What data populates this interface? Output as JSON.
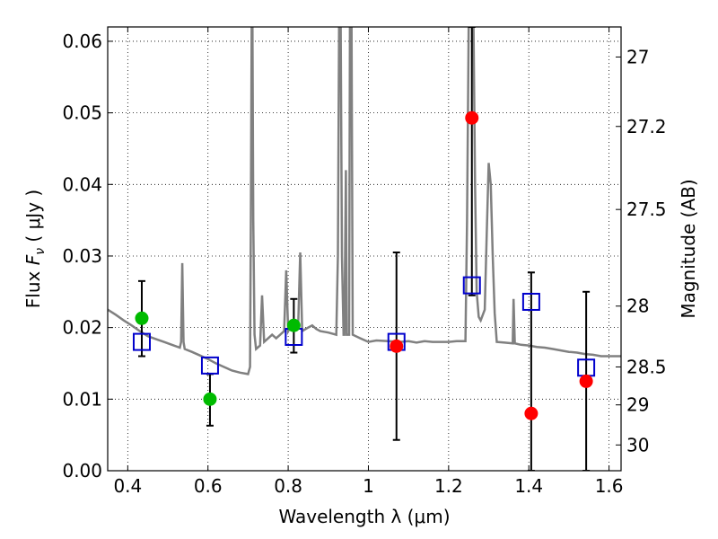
{
  "chart_data": {
    "type": "scatter",
    "xlabel": "Wavelength  λ (μm)",
    "ylabel_prefix": "Flux",
    "ylabel_symbol": "F",
    "ylabel_subscript": "ν",
    "ylabel_unit": "( μJy )",
    "y2label": "Magnitude (AB)",
    "xlim": [
      0.35,
      1.63
    ],
    "ylim": [
      0.0,
      0.062
    ],
    "grid": true,
    "x_ticks": [
      0.4,
      0.6,
      0.8,
      1.0,
      1.2,
      1.4,
      1.6
    ],
    "x_tick_labels": [
      "0.4",
      "0.6",
      "0.8",
      "1",
      "1.2",
      "1.4",
      "1.6"
    ],
    "y_ticks": [
      0.0,
      0.01,
      0.02,
      0.03,
      0.04,
      0.05,
      0.06
    ],
    "y_tick_labels": [
      "0.00",
      "0.01",
      "0.02",
      "0.03",
      "0.04",
      "0.05",
      "0.06"
    ],
    "magnitude_ticks": [
      {
        "label": "27",
        "flux": 0.0578
      },
      {
        "label": "27.2",
        "flux": 0.0481
      },
      {
        "label": "27.5",
        "flux": 0.0365
      },
      {
        "label": "28",
        "flux": 0.023
      },
      {
        "label": "28.5",
        "flux": 0.0145
      },
      {
        "label": "29",
        "flux": 0.0092
      },
      {
        "label": "30",
        "flux": 0.0036
      }
    ],
    "colors": {
      "template": "#808080",
      "model": "#0000cc",
      "detection_green": "#00bb00",
      "detection_red": "#ff0000",
      "errorbar": "#000000"
    },
    "template_spectrum": [
      [
        0.35,
        0.0225
      ],
      [
        0.37,
        0.0218
      ],
      [
        0.39,
        0.021
      ],
      [
        0.41,
        0.0203
      ],
      [
        0.43,
        0.0195
      ],
      [
        0.45,
        0.0188
      ],
      [
        0.47,
        0.0184
      ],
      [
        0.49,
        0.018
      ],
      [
        0.51,
        0.0176
      ],
      [
        0.53,
        0.0172
      ],
      [
        0.533,
        0.018
      ],
      [
        0.536,
        0.029
      ],
      [
        0.539,
        0.018
      ],
      [
        0.542,
        0.017
      ],
      [
        0.56,
        0.0166
      ],
      [
        0.58,
        0.0161
      ],
      [
        0.6,
        0.0156
      ],
      [
        0.62,
        0.015
      ],
      [
        0.64,
        0.0145
      ],
      [
        0.66,
        0.014
      ],
      [
        0.68,
        0.0137
      ],
      [
        0.7,
        0.0135
      ],
      [
        0.705,
        0.0145
      ],
      [
        0.707,
        0.035
      ],
      [
        0.709,
        0.062
      ],
      [
        0.711,
        0.062
      ],
      [
        0.713,
        0.035
      ],
      [
        0.716,
        0.019
      ],
      [
        0.72,
        0.017
      ],
      [
        0.73,
        0.0175
      ],
      [
        0.735,
        0.0245
      ],
      [
        0.74,
        0.018
      ],
      [
        0.75,
        0.0185
      ],
      [
        0.76,
        0.019
      ],
      [
        0.77,
        0.0185
      ],
      [
        0.78,
        0.019
      ],
      [
        0.79,
        0.0195
      ],
      [
        0.795,
        0.028
      ],
      [
        0.8,
        0.0195
      ],
      [
        0.81,
        0.0205
      ],
      [
        0.82,
        0.02
      ],
      [
        0.825,
        0.0205
      ],
      [
        0.83,
        0.0305
      ],
      [
        0.835,
        0.0195
      ],
      [
        0.85,
        0.02
      ],
      [
        0.86,
        0.0203
      ],
      [
        0.87,
        0.0198
      ],
      [
        0.88,
        0.0195
      ],
      [
        0.9,
        0.0193
      ],
      [
        0.92,
        0.019
      ],
      [
        0.924,
        0.03
      ],
      [
        0.927,
        0.062
      ],
      [
        0.931,
        0.062
      ],
      [
        0.934,
        0.03
      ],
      [
        0.938,
        0.019
      ],
      [
        0.94,
        0.019
      ],
      [
        0.944,
        0.042
      ],
      [
        0.946,
        0.019
      ],
      [
        0.952,
        0.019
      ],
      [
        0.954,
        0.062
      ],
      [
        0.958,
        0.062
      ],
      [
        0.961,
        0.019
      ],
      [
        0.98,
        0.0185
      ],
      [
        1.0,
        0.018
      ],
      [
        1.02,
        0.0182
      ],
      [
        1.05,
        0.0181
      ],
      [
        1.08,
        0.018
      ],
      [
        1.1,
        0.0181
      ],
      [
        1.12,
        0.0179
      ],
      [
        1.14,
        0.0181
      ],
      [
        1.16,
        0.018
      ],
      [
        1.18,
        0.018
      ],
      [
        1.2,
        0.018
      ],
      [
        1.22,
        0.0181
      ],
      [
        1.242,
        0.0181
      ],
      [
        1.246,
        0.035
      ],
      [
        1.25,
        0.062
      ],
      [
        1.262,
        0.062
      ],
      [
        1.266,
        0.04
      ],
      [
        1.27,
        0.025
      ],
      [
        1.275,
        0.0215
      ],
      [
        1.28,
        0.021
      ],
      [
        1.29,
        0.0225
      ],
      [
        1.295,
        0.033
      ],
      [
        1.3,
        0.043
      ],
      [
        1.305,
        0.04
      ],
      [
        1.31,
        0.03
      ],
      [
        1.315,
        0.022
      ],
      [
        1.32,
        0.018
      ],
      [
        1.34,
        0.0179
      ],
      [
        1.36,
        0.0178
      ],
      [
        1.362,
        0.024
      ],
      [
        1.365,
        0.0178
      ],
      [
        1.38,
        0.0176
      ],
      [
        1.4,
        0.0175
      ],
      [
        1.42,
        0.0173
      ],
      [
        1.44,
        0.0172
      ],
      [
        1.46,
        0.017
      ],
      [
        1.48,
        0.0168
      ],
      [
        1.5,
        0.0166
      ],
      [
        1.52,
        0.0165
      ],
      [
        1.54,
        0.0163
      ],
      [
        1.56,
        0.0162
      ],
      [
        1.58,
        0.016
      ],
      [
        1.6,
        0.016
      ],
      [
        1.63,
        0.016
      ]
    ],
    "model_points": [
      {
        "x": 0.435,
        "y": 0.018
      },
      {
        "x": 0.605,
        "y": 0.0147
      },
      {
        "x": 0.814,
        "y": 0.0187
      },
      {
        "x": 1.07,
        "y": 0.018
      },
      {
        "x": 1.258,
        "y": 0.0259
      },
      {
        "x": 1.406,
        "y": 0.0236
      },
      {
        "x": 1.543,
        "y": 0.0144
      }
    ],
    "observed_points": [
      {
        "x": 0.435,
        "y": 0.0213,
        "err_low": 0.016,
        "err_high": 0.0265,
        "color": "green"
      },
      {
        "x": 0.605,
        "y": 0.01,
        "err_low": 0.0063,
        "err_high": 0.0135,
        "color": "green"
      },
      {
        "x": 0.814,
        "y": 0.0203,
        "err_low": 0.0165,
        "err_high": 0.024,
        "color": "green"
      },
      {
        "x": 1.07,
        "y": 0.0174,
        "err_low": 0.0043,
        "err_high": 0.0305,
        "color": "red"
      },
      {
        "x": 1.258,
        "y": 0.0493,
        "err_low": 0.0245,
        "err_high": 0.062,
        "color": "red"
      },
      {
        "x": 1.406,
        "y": 0.008,
        "err_low": 0.0,
        "err_high": 0.0277,
        "color": "red"
      },
      {
        "x": 1.543,
        "y": 0.0125,
        "err_low": 0.0,
        "err_high": 0.025,
        "color": "red"
      }
    ]
  }
}
